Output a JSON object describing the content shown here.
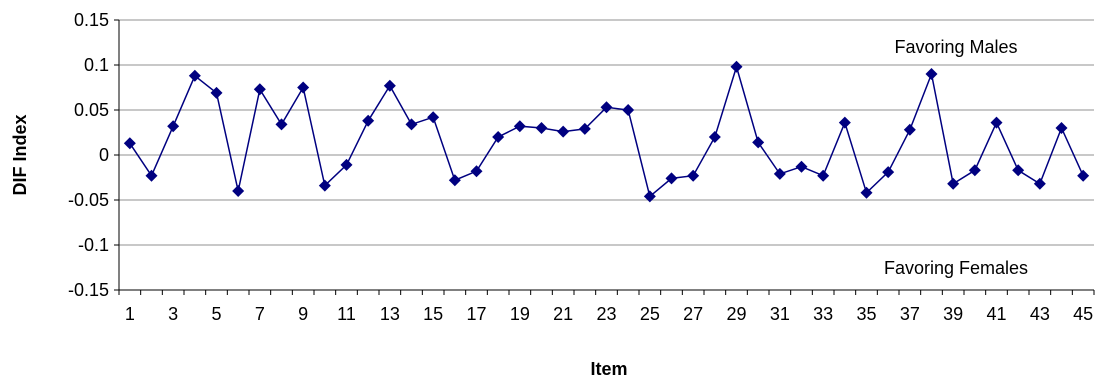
{
  "chart_data": {
    "type": "line",
    "xlabel": "Item",
    "ylabel": "DIF Index",
    "ylim": [
      -0.15,
      0.15
    ],
    "yticks": [
      {
        "value": 0.15,
        "label": "0.15"
      },
      {
        "value": 0.1,
        "label": "0.1"
      },
      {
        "value": 0.05,
        "label": "0.05"
      },
      {
        "value": 0,
        "label": "0"
      },
      {
        "value": -0.05,
        "label": "-0.05"
      },
      {
        "value": -0.1,
        "label": "-0.1"
      },
      {
        "value": -0.15,
        "label": "-0.15"
      }
    ],
    "xtick_labels": [
      "1",
      "3",
      "5",
      "7",
      "9",
      "11",
      "13",
      "15",
      "17",
      "19",
      "21",
      "23",
      "25",
      "27",
      "29",
      "31",
      "33",
      "35",
      "37",
      "39",
      "41",
      "43",
      "45"
    ],
    "grid": true,
    "marker": "diamond",
    "color": "#000080",
    "annotations": {
      "upper": "Favoring Males",
      "lower": "Favoring Females"
    },
    "x": [
      1,
      2,
      3,
      4,
      5,
      6,
      7,
      8,
      9,
      10,
      11,
      12,
      13,
      14,
      15,
      16,
      17,
      18,
      19,
      20,
      21,
      22,
      23,
      24,
      25,
      26,
      27,
      28,
      29,
      30,
      31,
      32,
      33,
      34,
      35,
      36,
      37,
      38,
      39,
      40,
      41,
      42,
      43,
      44,
      45
    ],
    "values": [
      0.013,
      -0.023,
      0.032,
      0.088,
      0.069,
      -0.04,
      0.073,
      0.034,
      0.075,
      -0.034,
      -0.011,
      0.038,
      0.077,
      0.034,
      0.042,
      -0.028,
      -0.018,
      0.02,
      0.032,
      0.03,
      0.026,
      0.029,
      0.053,
      0.05,
      -0.046,
      -0.026,
      -0.023,
      0.02,
      0.098,
      0.014,
      -0.021,
      -0.013,
      -0.023,
      0.036,
      -0.042,
      -0.019,
      0.028,
      0.09,
      -0.032,
      -0.017,
      0.036,
      -0.017,
      -0.032,
      0.03,
      -0.023
    ]
  }
}
